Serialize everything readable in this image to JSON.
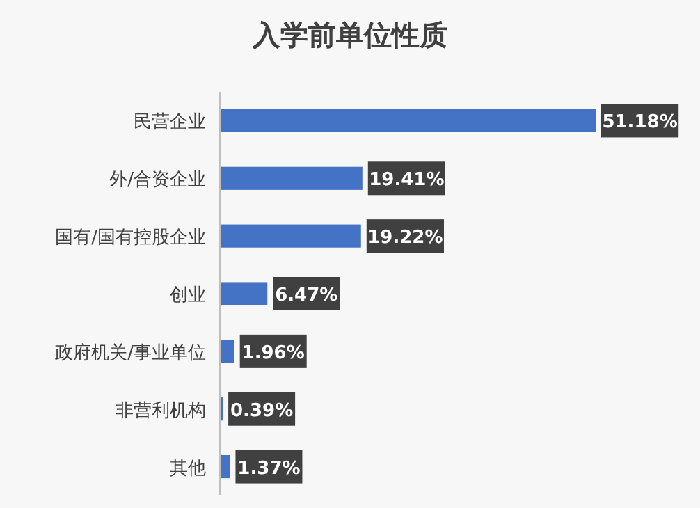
{
  "chart_data": {
    "type": "bar",
    "orientation": "horizontal",
    "title": "入学前单位性质",
    "categories": [
      "民营企业",
      "外/合资企业",
      "国有/国有控股企业",
      "创业",
      "政府机关/事业单位",
      "非营利机构",
      "其他"
    ],
    "values": [
      51.18,
      19.41,
      19.22,
      6.47,
      1.96,
      0.39,
      1.37
    ],
    "value_labels": [
      "51.18%",
      "19.41%",
      "19.22%",
      "6.47%",
      "1.96%",
      "0.39%",
      "1.37%"
    ],
    "color": "#4472c4"
  }
}
